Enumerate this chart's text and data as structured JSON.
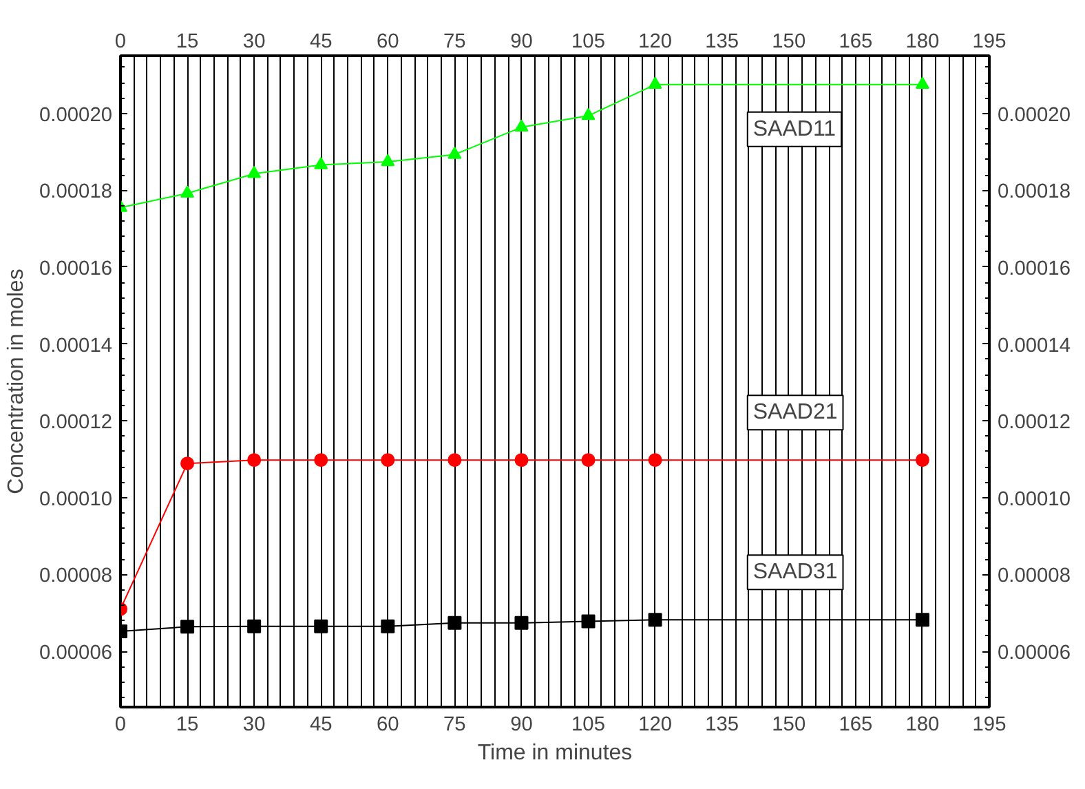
{
  "chart_data": {
    "type": "line",
    "xlabel": "Time in minutes",
    "ylabel": "Concentration in moles",
    "x": [
      0,
      15,
      30,
      45,
      60,
      75,
      90,
      105,
      120,
      180
    ],
    "series": [
      {
        "name": "SAAD11",
        "color": "#00ff00",
        "marker": "triangle",
        "values": [
          0.0001755,
          0.0001792,
          0.0001843,
          0.0001866,
          0.0001874,
          0.0001893,
          0.0001964,
          0.0001994,
          0.0002075,
          0.0002075
        ]
      },
      {
        "name": "SAAD21",
        "color": "#ff0000",
        "marker": "circle",
        "values": [
          7.1e-05,
          0.0001089,
          0.0001098,
          0.0001098,
          0.0001098,
          0.0001098,
          0.0001098,
          0.0001098,
          0.0001098,
          0.0001098
        ]
      },
      {
        "name": "SAAD31",
        "color": "#000000",
        "marker": "square",
        "values": [
          6.52e-05,
          6.64e-05,
          6.65e-05,
          6.65e-05,
          6.65e-05,
          6.74e-05,
          6.74e-05,
          6.78e-05,
          6.82e-05,
          6.82e-05
        ]
      }
    ],
    "xlim": [
      0,
      195
    ],
    "xticks": [
      0,
      15,
      30,
      45,
      60,
      75,
      90,
      105,
      120,
      135,
      150,
      165,
      180,
      195
    ],
    "x2lim": [
      0,
      195
    ],
    "x2ticks": [
      0,
      15,
      30,
      45,
      60,
      75,
      90,
      105,
      120,
      135,
      150,
      165,
      180,
      195
    ],
    "ylim": [
      4.55e-05,
      0.000215
    ],
    "yticks": [
      {
        "value": 6e-05,
        "label": "0.00006"
      },
      {
        "value": 8e-05,
        "label": "0.00008"
      },
      {
        "value": 0.0001,
        "label": "0.00010"
      },
      {
        "value": 0.00012,
        "label": "0.00012"
      },
      {
        "value": 0.00014,
        "label": "0.00014"
      },
      {
        "value": 0.00016,
        "label": "0.00016"
      },
      {
        "value": 0.00018,
        "label": "0.00018"
      },
      {
        "value": 0.0002,
        "label": "0.00020"
      }
    ],
    "y2lim": [
      4.55e-05,
      0.000215
    ],
    "y2ticks": [
      {
        "value": 6e-05,
        "label": "0.00006"
      },
      {
        "value": 8e-05,
        "label": "0.00008"
      },
      {
        "value": 0.0001,
        "label": "0.00010"
      },
      {
        "value": 0.00012,
        "label": "0.00012"
      },
      {
        "value": 0.00014,
        "label": "0.00014"
      },
      {
        "value": 0.00016,
        "label": "0.00016"
      },
      {
        "value": 0.00018,
        "label": "0.00018"
      },
      {
        "value": 0.0002,
        "label": "0.00020"
      }
    ],
    "grid": "x",
    "line_style": "solid"
  }
}
